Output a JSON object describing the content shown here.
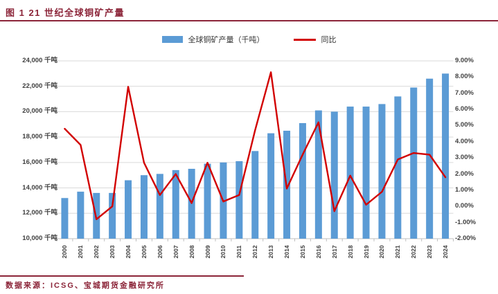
{
  "header": {
    "title": "图 1 21 世纪全球铜矿产量"
  },
  "legend": {
    "bar_label": "全球铜矿产量（千吨）",
    "line_label": "同比"
  },
  "footer": {
    "source": "数据来源：ICSG、宝城期货金融研究所"
  },
  "colors": {
    "bar": "#5B9BD5",
    "line": "#D20000",
    "accent_maroon": "#8B2438",
    "gridline": "#D9D9D9",
    "axis_line": "#BFBFBF",
    "axis_text": "#404040"
  },
  "chart_data": {
    "type": "bar",
    "title": "图 1 21 世纪全球铜矿产量",
    "categories": [
      "2000",
      "2001",
      "2002",
      "2003",
      "2004",
      "2005",
      "2006",
      "2007",
      "2008",
      "2009",
      "2010",
      "2011",
      "2012",
      "2013",
      "2014",
      "2015",
      "2016",
      "2017",
      "2018",
      "2019",
      "2020",
      "2021",
      "2022",
      "2023",
      "2024"
    ],
    "series": [
      {
        "name": "全球铜矿产量（千吨）",
        "type": "bar",
        "axis": "left",
        "values": [
          13200,
          13700,
          13600,
          13600,
          14600,
          15000,
          15100,
          15400,
          15500,
          15900,
          16000,
          16100,
          16900,
          18300,
          18500,
          19100,
          20100,
          20000,
          20400,
          20400,
          20600,
          21200,
          21900,
          22600,
          23000
        ]
      },
      {
        "name": "同比",
        "type": "line",
        "axis": "right",
        "unit": "%",
        "values": [
          4.8,
          3.8,
          -0.8,
          0.0,
          7.4,
          2.7,
          0.7,
          2.0,
          0.2,
          2.7,
          0.3,
          0.7,
          4.7,
          8.3,
          1.1,
          3.2,
          5.2,
          -0.3,
          1.9,
          0.1,
          0.9,
          2.9,
          3.3,
          3.2,
          1.8
        ]
      }
    ],
    "left_axis": {
      "unit": "千吨",
      "min": 10000,
      "max": 24000,
      "tick_labels": [
        "24,000 千吨",
        "22,000 千吨",
        "20,000 千吨",
        "18,000 千吨",
        "16,000 千吨",
        "14,000 千吨",
        "12,000 千吨",
        "10,000 千吨"
      ]
    },
    "right_axis": {
      "unit": "%",
      "min": -2,
      "max": 9,
      "tick_labels": [
        "9.00%",
        "8.00%",
        "7.00%",
        "6.00%",
        "5.00%",
        "4.00%",
        "3.00%",
        "2.00%",
        "1.00%",
        "0.00%",
        "-1.00%",
        "-2.00%"
      ]
    },
    "grid": true,
    "legend_position": "top"
  }
}
